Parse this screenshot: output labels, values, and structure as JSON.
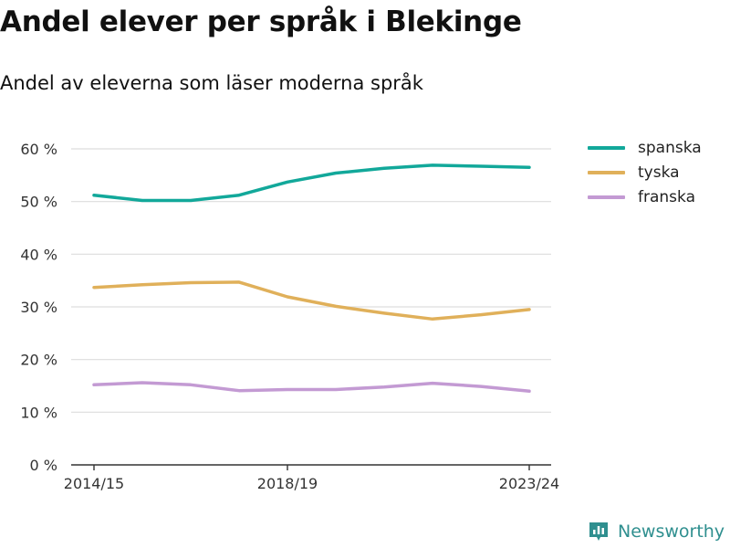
{
  "title": "Andel elever per språk i Blekinge",
  "subtitle": "Andel av eleverna som läser moderna språk",
  "brand": {
    "name": "Newsworthy",
    "icon": "newsworthy-logo-icon",
    "color": "#2f8f8f"
  },
  "chart_data": {
    "type": "line",
    "x": [
      "2014/15",
      "2015/16",
      "2016/17",
      "2017/18",
      "2018/19",
      "2019/20",
      "2020/21",
      "2021/22",
      "2022/23",
      "2023/24"
    ],
    "x_tick_labels": [
      "2014/15",
      "2018/19",
      "2023/24"
    ],
    "y_tick_labels": [
      "0 %",
      "10 %",
      "20 %",
      "30 %",
      "40 %",
      "50 %",
      "60 %"
    ],
    "ylim": [
      0,
      60
    ],
    "grid": true,
    "legend_position": "right",
    "series": [
      {
        "name": "spanska",
        "color": "#12a89a",
        "values": [
          51.2,
          50.2,
          50.2,
          51.2,
          53.7,
          55.4,
          56.3,
          56.9,
          56.7,
          56.5
        ]
      },
      {
        "name": "tyska",
        "color": "#e0b05a",
        "values": [
          33.7,
          34.2,
          34.6,
          34.7,
          31.9,
          30.1,
          28.8,
          27.7,
          28.5,
          29.5
        ]
      },
      {
        "name": "franska",
        "color": "#c39ad3",
        "values": [
          15.2,
          15.6,
          15.2,
          14.1,
          14.3,
          14.3,
          14.8,
          15.5,
          14.9,
          14.0
        ]
      }
    ]
  }
}
